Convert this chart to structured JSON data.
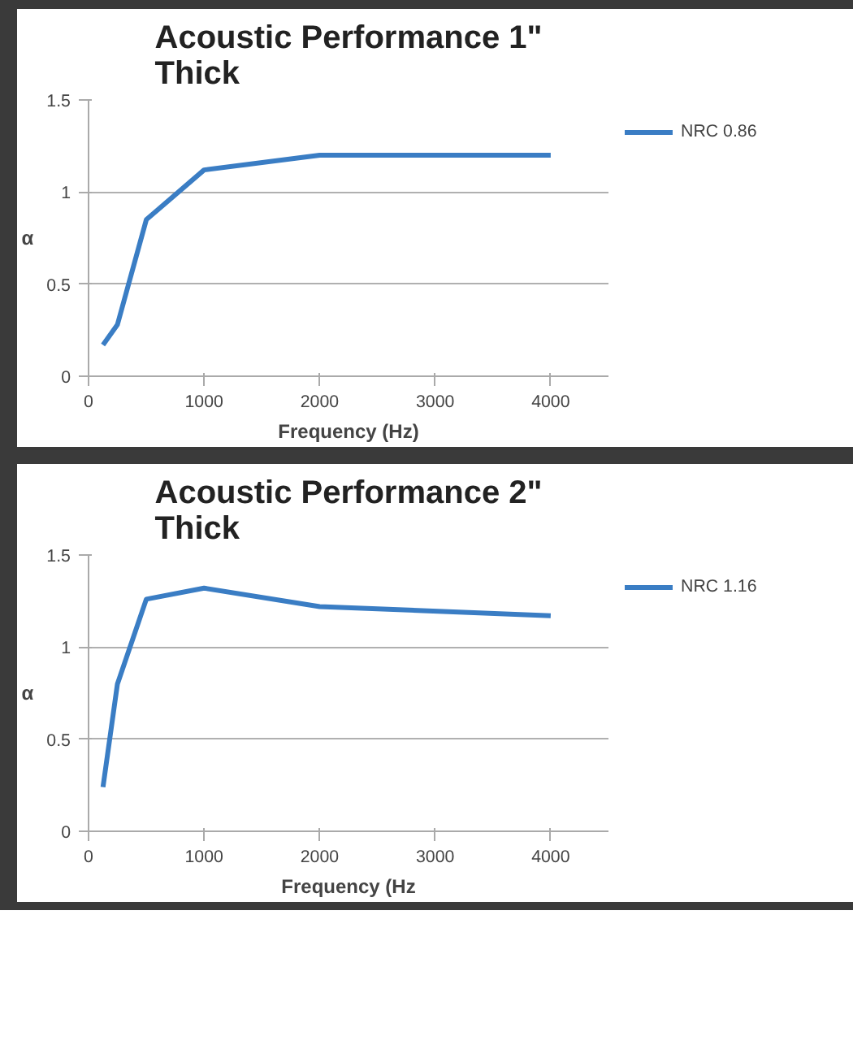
{
  "chart_data": [
    {
      "type": "line",
      "title": "Acoustic Performance 1\"\nThick",
      "xlabel": "Frequency (Hz)",
      "ylabel": "α",
      "x": [
        125,
        250,
        500,
        1000,
        2000,
        4000
      ],
      "series": [
        {
          "name": "NRC 0.86",
          "color": "#3a7dc4",
          "values": [
            0.17,
            0.28,
            0.85,
            1.12,
            1.2,
            1.2
          ]
        }
      ],
      "xlim": [
        0,
        4500
      ],
      "xticks": [
        0,
        1000,
        2000,
        3000,
        4000
      ],
      "ylim": [
        0,
        1.5
      ],
      "yticks": [
        0,
        0.5,
        1,
        1.5
      ],
      "grid": "y",
      "legend": "top right",
      "marker": "none",
      "line_style": "solid"
    },
    {
      "type": "line",
      "title": "Acoustic Performance 2\"\nThick",
      "xlabel": "Frequency (Hz",
      "ylabel": "α",
      "x": [
        125,
        250,
        500,
        1000,
        2000,
        4000
      ],
      "series": [
        {
          "name": "NRC 1.16",
          "color": "#3a7dc4",
          "values": [
            0.24,
            0.8,
            1.26,
            1.32,
            1.22,
            1.17
          ]
        }
      ],
      "xlim": [
        0,
        4500
      ],
      "xticks": [
        0,
        1000,
        2000,
        3000,
        4000
      ],
      "ylim": [
        0,
        1.5
      ],
      "yticks": [
        0,
        0.5,
        1,
        1.5
      ],
      "grid": "y",
      "legend": "top right",
      "marker": "none",
      "line_style": "solid"
    }
  ]
}
